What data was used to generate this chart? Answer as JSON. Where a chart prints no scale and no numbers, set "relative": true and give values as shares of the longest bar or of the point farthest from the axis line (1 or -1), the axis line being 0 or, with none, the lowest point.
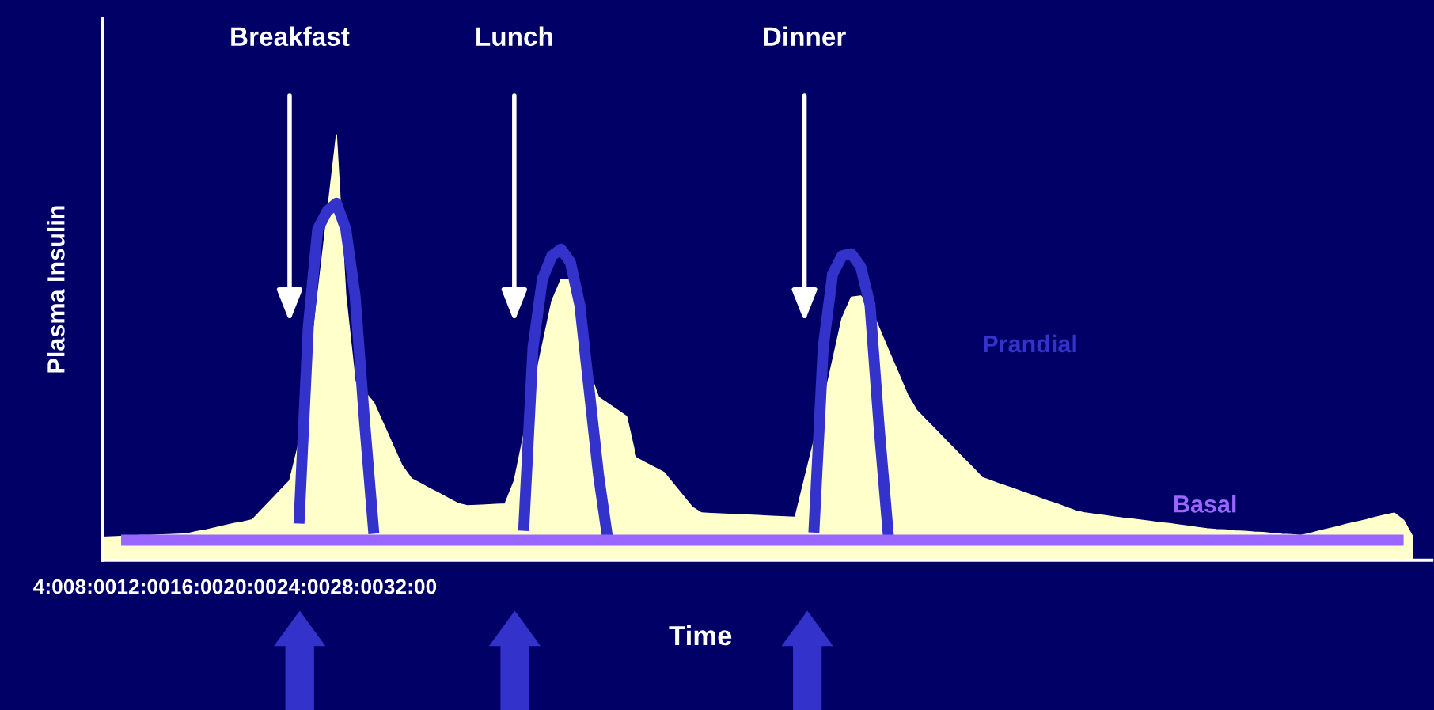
{
  "chart_data": {
    "type": "area",
    "relative": true,
    "xlabel": "Time",
    "ylabel": "Plasma Insulin",
    "categories": [
      null,
      null,
      null,
      null,
      null,
      null,
      null,
      null,
      null,
      null,
      null,
      null,
      null,
      null,
      null,
      null,
      null,
      null,
      null,
      null,
      null,
      null,
      null,
      null,
      null,
      null,
      null,
      null,
      null,
      null,
      null,
      null,
      null,
      null,
      null,
      null,
      null,
      null,
      null,
      null,
      null,
      null,
      null,
      null,
      null,
      null,
      null,
      null,
      null,
      null,
      null,
      null,
      null,
      null,
      null,
      null,
      null,
      null,
      null,
      null,
      null,
      null,
      null,
      null,
      null,
      null,
      null,
      null,
      null,
      null,
      null,
      null,
      null,
      null,
      null,
      null,
      null,
      null,
      null,
      null,
      null,
      null,
      null,
      null,
      null,
      null,
      null,
      null,
      null,
      null,
      null,
      null,
      null,
      null,
      null,
      null,
      null,
      null,
      null,
      null,
      null,
      null,
      null,
      null,
      null,
      null,
      null,
      null,
      null,
      null,
      null,
      null,
      null,
      null,
      null,
      null,
      null,
      null,
      null,
      null,
      null,
      null,
      null,
      null,
      null,
      null,
      null,
      null,
      null,
      null,
      null,
      null,
      null,
      null,
      null,
      null,
      null,
      null,
      null,
      null,
      null
    ],
    "series": [
      {
        "color": "#ffffcc",
        "values": [
          0.054,
          0.055,
          0.056,
          0.056,
          0.058,
          0.058,
          0.059,
          0.06,
          0.061,
          0.062,
          0.067,
          0.071,
          0.076,
          0.081,
          0.086,
          0.09,
          0.095,
          0.118,
          0.141,
          0.164,
          0.187,
          0.277,
          0.434,
          0.623,
          0.811,
          1,
          0.623,
          0.421,
          0.396,
          0.37,
          0.321,
          0.272,
          0.223,
          0.192,
          0.18,
          0.168,
          0.157,
          0.145,
          0.133,
          0.128,
          0.129,
          0.13,
          0.131,
          0.132,
          0.187,
          0.294,
          0.402,
          0.505,
          0.608,
          0.66,
          0.66,
          0.552,
          0.445,
          0.383,
          0.368,
          0.353,
          0.338,
          0.241,
          0.229,
          0.218,
          0.206,
          0.179,
          0.152,
          0.125,
          0.111,
          0.11,
          0.109,
          0.108,
          0.107,
          0.106,
          0.105,
          0.104,
          0.103,
          0.102,
          0.101,
          0.191,
          0.28,
          0.37,
          0.469,
          0.568,
          0.618,
          0.621,
          0.596,
          0.544,
          0.492,
          0.441,
          0.389,
          0.352,
          0.329,
          0.307,
          0.284,
          0.262,
          0.239,
          0.217,
          0.194,
          0.186,
          0.178,
          0.171,
          0.163,
          0.155,
          0.147,
          0.139,
          0.132,
          0.124,
          0.116,
          0.111,
          0.108,
          0.105,
          0.102,
          0.099,
          0.097,
          0.094,
          0.091,
          0.088,
          0.086,
          0.083,
          0.08,
          0.077,
          0.074,
          0.072,
          0.071,
          0.069,
          0.068,
          0.066,
          0.065,
          0.063,
          0.061,
          0.06,
          0.058,
          0.063,
          0.069,
          0.074,
          0.079,
          0.085,
          0.09,
          0.095,
          0.101,
          0.106,
          0.111,
          0.094,
          0.054
        ]
      },
      {
        "type": "line",
        "name": "Prandial",
        "color": "#3333cc",
        "values": [
          null,
          null,
          null,
          null,
          null,
          null,
          null,
          null,
          null,
          null,
          null,
          null,
          null,
          null,
          null,
          null,
          null,
          null,
          null,
          null,
          null,
          0.086,
          0.55,
          0.778,
          0.82,
          0.839,
          0.778,
          0.62,
          0.327,
          0.062,
          null,
          null,
          null,
          null,
          null,
          null,
          null,
          null,
          null,
          null,
          null,
          null,
          null,
          null,
          null,
          0.069,
          0.5,
          0.66,
          0.715,
          0.731,
          0.7,
          0.6,
          0.4,
          0.2,
          0.047,
          null,
          null,
          null,
          null,
          null,
          null,
          null,
          null,
          null,
          null,
          null,
          null,
          null,
          null,
          null,
          null,
          null,
          null,
          null,
          null,
          null,
          0.065,
          0.5,
          0.672,
          0.715,
          0.72,
          0.69,
          0.6,
          0.305,
          0.047,
          null,
          null,
          null,
          null,
          null,
          null,
          null,
          null,
          null,
          null,
          null,
          null,
          null,
          null,
          null,
          null,
          null,
          null,
          null,
          null,
          null,
          null,
          null,
          null,
          null,
          null,
          null,
          null,
          null,
          null,
          null,
          null,
          null,
          null,
          null,
          null,
          null,
          null,
          null,
          null,
          null,
          null,
          null,
          null,
          null,
          null,
          null,
          null,
          null,
          null,
          null,
          null,
          null,
          null,
          null,
          null
        ]
      },
      {
        "type": "line",
        "name": "Basal",
        "color": "#9966ff",
        "values": [
          null,
          null,
          0.047,
          0.047,
          0.047,
          0.047,
          0.047,
          0.047,
          0.047,
          0.047,
          0.047,
          0.047,
          0.047,
          0.047,
          0.047,
          0.047,
          0.047,
          0.047,
          0.047,
          0.047,
          0.047,
          0.047,
          0.047,
          0.047,
          0.047,
          0.047,
          0.047,
          0.047,
          0.047,
          0.047,
          0.047,
          0.047,
          0.047,
          0.047,
          0.047,
          0.047,
          0.047,
          0.047,
          0.047,
          0.047,
          0.047,
          0.047,
          0.047,
          0.047,
          0.047,
          0.047,
          0.047,
          0.047,
          0.047,
          0.047,
          0.047,
          0.047,
          0.047,
          0.047,
          0.047,
          0.047,
          0.047,
          0.047,
          0.047,
          0.047,
          0.047,
          0.047,
          0.047,
          0.047,
          0.047,
          0.047,
          0.047,
          0.047,
          0.047,
          0.047,
          0.047,
          0.047,
          0.047,
          0.047,
          0.047,
          0.047,
          0.047,
          0.047,
          0.047,
          0.047,
          0.047,
          0.047,
          0.047,
          0.047,
          0.047,
          0.047,
          0.047,
          0.047,
          0.047,
          0.047,
          0.047,
          0.047,
          0.047,
          0.047,
          0.047,
          0.047,
          0.047,
          0.047,
          0.047,
          0.047,
          0.047,
          0.047,
          0.047,
          0.047,
          0.047,
          0.047,
          0.047,
          0.047,
          0.047,
          0.047,
          0.047,
          0.047,
          0.047,
          0.047,
          0.047,
          0.047,
          0.047,
          0.047,
          0.047,
          0.047,
          0.047,
          0.047,
          0.047,
          0.047,
          0.047,
          0.047,
          0.047,
          0.047,
          0.047,
          0.047,
          0.047,
          0.047,
          0.047,
          0.047,
          0.047,
          0.047,
          0.047,
          0.047,
          0.047,
          0.047,
          null
        ]
      }
    ],
    "annotations": [
      "Breakfast",
      "Lunch",
      "Dinner",
      "4:008:0012:0016:0020:0024:0028:0032:00"
    ]
  }
}
